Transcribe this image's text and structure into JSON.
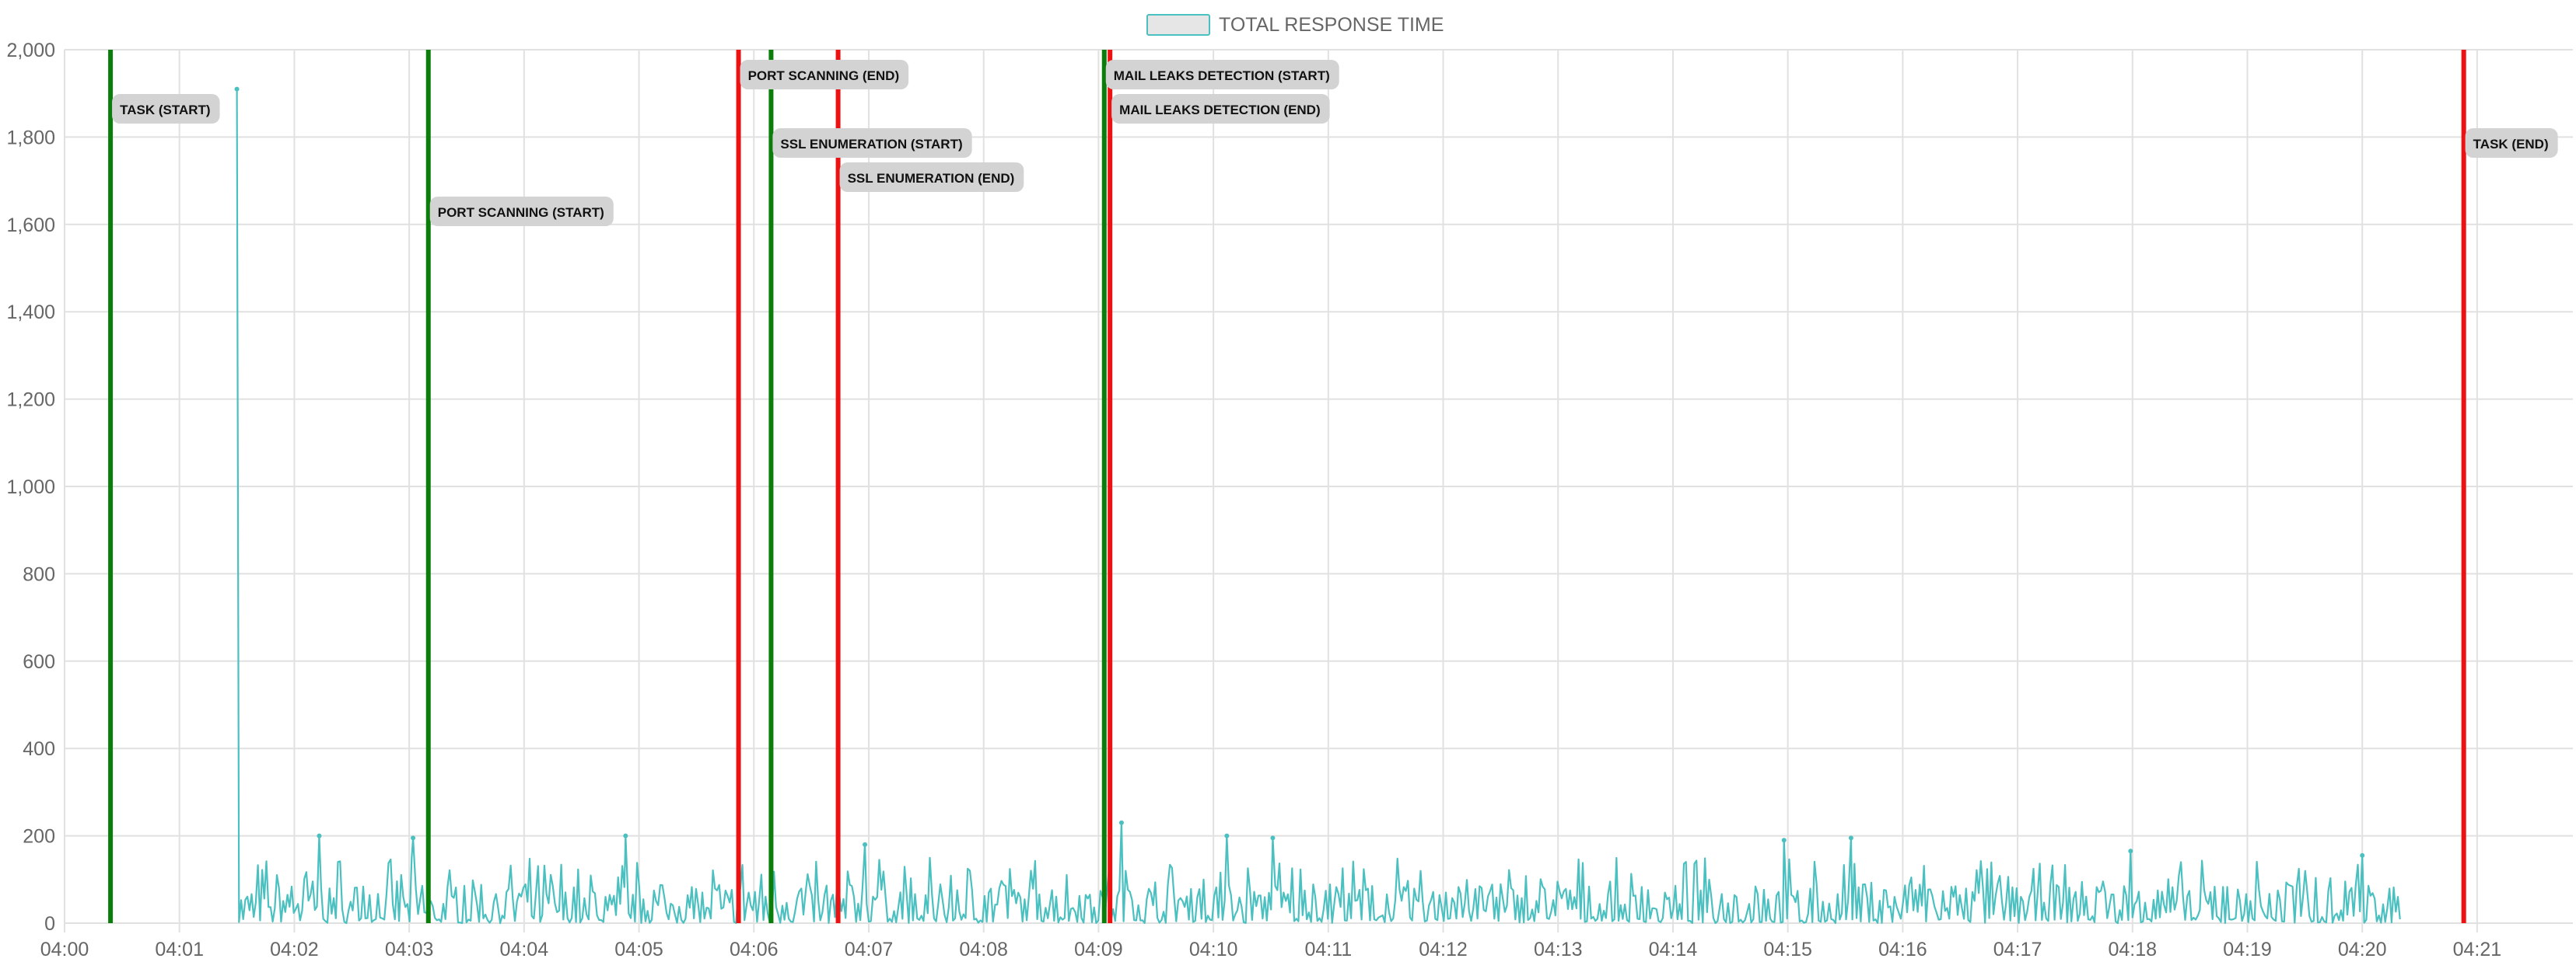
{
  "chart_data": {
    "type": "line",
    "legend": {
      "label": "TOTAL RESPONSE TIME",
      "placement": "top-center"
    },
    "colors": {
      "series": "#4bc0c0",
      "series_fill": "#e6e6e6",
      "start_marker": "#0a7d0a",
      "end_marker": "#ee1111",
      "grid": "#e1e1e1",
      "annotation_bg": "#d3d3d3"
    },
    "x_axis": {
      "type": "time",
      "range": [
        "04:00:00",
        "04:21:50"
      ],
      "ticks": [
        "04:00",
        "04:01",
        "04:02",
        "04:03",
        "04:04",
        "04:05",
        "04:06",
        "04:07",
        "04:08",
        "04:09",
        "04:10",
        "04:11",
        "04:12",
        "04:13",
        "04:14",
        "04:15",
        "04:16",
        "04:17",
        "04:18",
        "04:19",
        "04:20",
        "04:21"
      ]
    },
    "y_axis": {
      "range": [
        0,
        2000
      ],
      "ticks": [
        0,
        200,
        400,
        600,
        800,
        1000,
        1200,
        1400,
        1600,
        1800,
        2000
      ],
      "tick_labels": [
        "0",
        "200",
        "400",
        "600",
        "800",
        "1,000",
        "1,200",
        "1,400",
        "1,600",
        "1,800",
        "2,000"
      ]
    },
    "grid": true,
    "series": [
      {
        "x_start": "04:01:30",
        "x_end": "04:20:20",
        "peaks": [
          {
            "x": "04:01:30",
            "y": 1910
          },
          {
            "x": "04:02:13",
            "y": 200
          },
          {
            "x": "04:03:02",
            "y": 195
          },
          {
            "x": "04:04:53",
            "y": 200
          },
          {
            "x": "04:06:58",
            "y": 180
          },
          {
            "x": "04:09:12",
            "y": 230
          },
          {
            "x": "04:10:07",
            "y": 200
          },
          {
            "x": "04:10:31",
            "y": 195
          },
          {
            "x": "04:14:58",
            "y": 190
          },
          {
            "x": "04:15:33",
            "y": 195
          },
          {
            "x": "04:17:59",
            "y": 165
          },
          {
            "x": "04:20:00",
            "y": 155
          }
        ],
        "typical_range": [
          0,
          150
        ]
      }
    ],
    "annotations": [
      {
        "label": "TASK (START)",
        "x": "04:00:24",
        "kind": "start"
      },
      {
        "label": "PORT SCANNING (START)",
        "x": "04:03:10",
        "kind": "start"
      },
      {
        "label": "PORT SCANNING (END)",
        "x": "04:05:52",
        "kind": "end"
      },
      {
        "label": "SSL ENUMERATION (START)",
        "x": "04:06:09",
        "kind": "start"
      },
      {
        "label": "SSL ENUMERATION (END)",
        "x": "04:06:44",
        "kind": "end"
      },
      {
        "label": "MAIL LEAKS DETECTION (START)",
        "x": "04:09:03",
        "kind": "start"
      },
      {
        "label": "MAIL LEAKS DETECTION (END)",
        "x": "04:09:06",
        "kind": "end"
      },
      {
        "label": "TASK (END)",
        "x": "04:20:53",
        "kind": "end"
      }
    ]
  }
}
